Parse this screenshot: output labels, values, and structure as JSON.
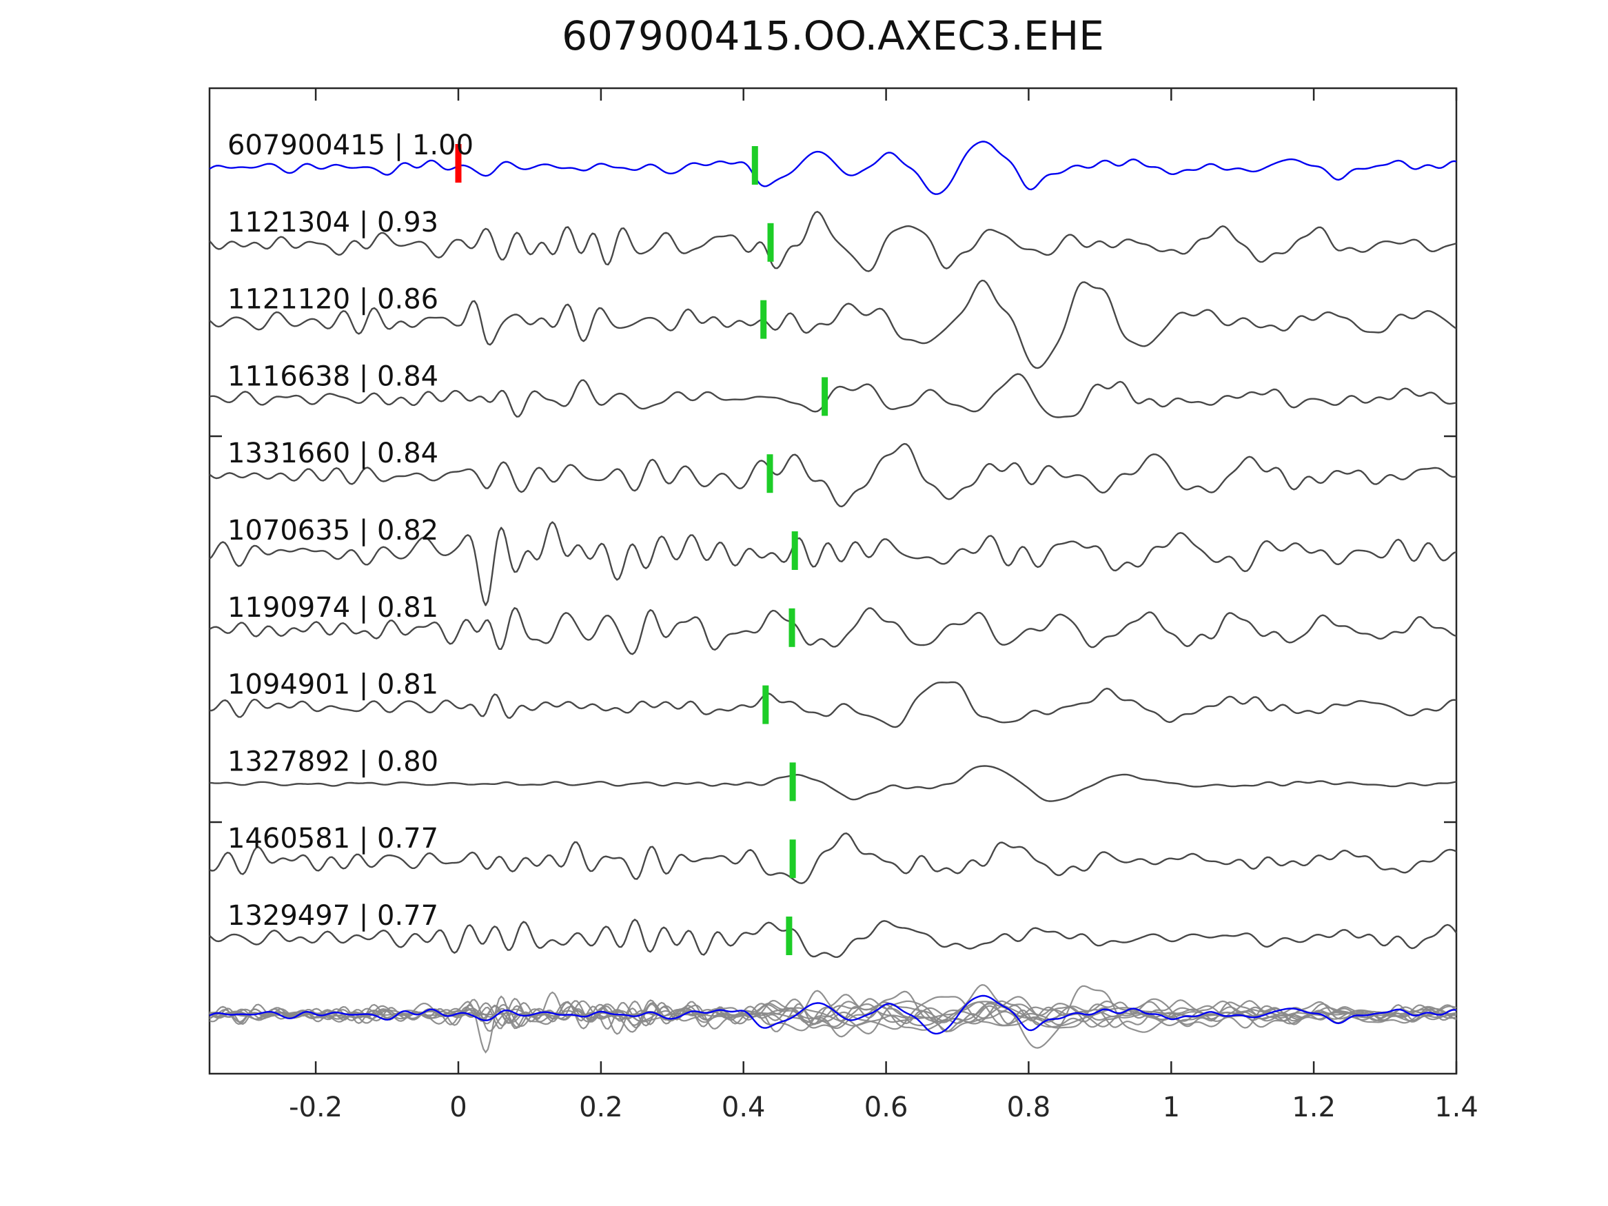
{
  "title": "607900415.OO.AXEC3.EHE",
  "chart_data": {
    "type": "line",
    "title": "607900415.OO.AXEC3.EHE",
    "xlabel": "",
    "ylabel": "",
    "x_range": [
      -0.349,
      1.4
    ],
    "x_ticks": [
      -0.2,
      0,
      0.2,
      0.4,
      0.6,
      0.8,
      1,
      1.2,
      1.4
    ],
    "x_tick_labels": [
      "-0.2",
      "0",
      "0.2",
      "0.4",
      "0.6",
      "0.8",
      "1",
      "1.2",
      "1.4"
    ],
    "grid": false,
    "legend": "none",
    "colors": {
      "template_trace": "#0000f0",
      "detection_trace": "#474747",
      "overlay_trace": "#8a8a8a",
      "pick_marker": "#1dcd27",
      "zero_marker": "#ff0000",
      "axis": "#262626",
      "tick_label": "#262626",
      "trace_label": "#111111"
    },
    "template_zero_marker": {
      "trace_id": "607900415",
      "time": 0.0
    },
    "traces": [
      {
        "id": "607900415",
        "correlation": "1.00",
        "label": "607900415 | 1.00",
        "pick_time": 0.416,
        "is_template": true,
        "synth": {
          "seed": 101,
          "hf_band": [
            14,
            30
          ],
          "lf_band": [
            4.5,
            9
          ],
          "hf_env": [
            [
              -0.35,
              4
            ],
            [
              0.3,
              4
            ],
            [
              0.45,
              3
            ],
            [
              1.4,
              3
            ]
          ],
          "lf_env": [
            [
              -0.35,
              2
            ],
            [
              0.3,
              3
            ],
            [
              0.38,
              6
            ],
            [
              0.48,
              18
            ],
            [
              0.8,
              17
            ],
            [
              1.0,
              10
            ],
            [
              1.2,
              7
            ],
            [
              1.4,
              6
            ]
          ]
        }
      },
      {
        "id": "1121304",
        "correlation": "0.93",
        "label": "1121304 | 0.93",
        "pick_time": 0.438,
        "is_template": false,
        "synth": {
          "seed": 7,
          "hf_band": [
            14,
            30
          ],
          "lf_band": [
            4.5,
            9
          ],
          "hf_env": [
            [
              -0.35,
              5
            ],
            [
              0.0,
              6
            ],
            [
              0.035,
              20
            ],
            [
              0.09,
              18
            ],
            [
              0.16,
              12
            ],
            [
              0.3,
              10
            ],
            [
              0.45,
              6
            ],
            [
              0.7,
              4
            ],
            [
              1.4,
              4
            ]
          ],
          "lf_env": [
            [
              -0.35,
              2
            ],
            [
              0.3,
              4
            ],
            [
              0.42,
              10
            ],
            [
              0.5,
              20
            ],
            [
              0.65,
              22
            ],
            [
              0.85,
              22
            ],
            [
              1.05,
              14
            ],
            [
              1.4,
              9
            ]
          ]
        }
      },
      {
        "id": "1121120",
        "correlation": "0.86",
        "label": "1121120 | 0.86",
        "pick_time": 0.428,
        "is_template": false,
        "synth": {
          "seed": 23,
          "hf_band": [
            14,
            30
          ],
          "lf_band": [
            4.5,
            9
          ],
          "hf_env": [
            [
              -0.35,
              5
            ],
            [
              0.0,
              6
            ],
            [
              0.035,
              19
            ],
            [
              0.09,
              16
            ],
            [
              0.18,
              11
            ],
            [
              0.3,
              9
            ],
            [
              0.45,
              6
            ],
            [
              0.7,
              4
            ],
            [
              1.4,
              4
            ]
          ],
          "lf_env": [
            [
              -0.35,
              2
            ],
            [
              0.3,
              4
            ],
            [
              0.42,
              9
            ],
            [
              0.5,
              18
            ],
            [
              0.65,
              20
            ],
            [
              0.85,
              20
            ],
            [
              1.05,
              13
            ],
            [
              1.4,
              9
            ]
          ]
        }
      },
      {
        "id": "1116638",
        "correlation": "0.84",
        "label": "1116638 | 0.84",
        "pick_time": 0.514,
        "is_template": false,
        "synth": {
          "seed": 41,
          "hf_band": [
            14,
            30
          ],
          "lf_band": [
            4.5,
            9
          ],
          "hf_env": [
            [
              -0.35,
              5
            ],
            [
              0.0,
              6
            ],
            [
              0.04,
              15
            ],
            [
              0.1,
              10
            ],
            [
              0.2,
              8
            ],
            [
              0.35,
              7
            ],
            [
              0.5,
              5
            ],
            [
              1.4,
              4
            ]
          ],
          "lf_env": [
            [
              -0.35,
              2
            ],
            [
              0.35,
              4
            ],
            [
              0.48,
              10
            ],
            [
              0.58,
              18
            ],
            [
              0.75,
              22
            ],
            [
              0.95,
              18
            ],
            [
              1.1,
              11
            ],
            [
              1.4,
              9
            ]
          ]
        }
      },
      {
        "id": "1331660",
        "correlation": "0.84",
        "label": "1331660 | 0.84",
        "pick_time": 0.437,
        "is_template": false,
        "synth": {
          "seed": 59,
          "hf_band": [
            14,
            30
          ],
          "lf_band": [
            4.5,
            9
          ],
          "hf_env": [
            [
              -0.35,
              5
            ],
            [
              0.0,
              6
            ],
            [
              0.04,
              17
            ],
            [
              0.1,
              12
            ],
            [
              0.2,
              10
            ],
            [
              0.32,
              8
            ],
            [
              0.45,
              6
            ],
            [
              1.4,
              4
            ]
          ],
          "lf_env": [
            [
              -0.35,
              2
            ],
            [
              0.3,
              4
            ],
            [
              0.42,
              10
            ],
            [
              0.52,
              19
            ],
            [
              0.7,
              21
            ],
            [
              0.88,
              19
            ],
            [
              1.05,
              13
            ],
            [
              1.4,
              9
            ]
          ]
        }
      },
      {
        "id": "1070635",
        "correlation": "0.82",
        "label": "1070635 | 0.82",
        "pick_time": 0.472,
        "is_template": false,
        "synth": {
          "seed": 73,
          "hf_band": [
            14,
            30
          ],
          "lf_band": [
            4.5,
            9
          ],
          "hf_env": [
            [
              -0.35,
              6
            ],
            [
              0.0,
              8
            ],
            [
              0.04,
              22
            ],
            [
              0.12,
              18
            ],
            [
              0.25,
              14
            ],
            [
              0.4,
              8
            ],
            [
              0.6,
              5
            ],
            [
              1.4,
              5
            ]
          ],
          "lf_env": [
            [
              -0.35,
              3
            ],
            [
              0.05,
              8
            ],
            [
              0.2,
              8
            ],
            [
              0.42,
              12
            ],
            [
              0.55,
              22
            ],
            [
              0.8,
              20
            ],
            [
              1.05,
              12
            ],
            [
              1.4,
              9
            ]
          ]
        }
      },
      {
        "id": "1190974",
        "correlation": "0.81",
        "label": "1190974 | 0.81",
        "pick_time": 0.468,
        "is_template": false,
        "synth": {
          "seed": 89,
          "hf_band": [
            14,
            30
          ],
          "lf_band": [
            4.5,
            9
          ],
          "hf_env": [
            [
              -0.35,
              6
            ],
            [
              0.0,
              8
            ],
            [
              0.04,
              21
            ],
            [
              0.14,
              17
            ],
            [
              0.28,
              13
            ],
            [
              0.42,
              8
            ],
            [
              0.6,
              5
            ],
            [
              1.4,
              5
            ]
          ],
          "lf_env": [
            [
              -0.35,
              2
            ],
            [
              0.3,
              5
            ],
            [
              0.45,
              11
            ],
            [
              0.55,
              20
            ],
            [
              0.75,
              20
            ],
            [
              0.95,
              16
            ],
            [
              1.1,
              11
            ],
            [
              1.4,
              8
            ]
          ]
        }
      },
      {
        "id": "1094901",
        "correlation": "0.81",
        "label": "1094901 | 0.81",
        "pick_time": 0.431,
        "is_template": false,
        "synth": {
          "seed": 113,
          "hf_band": [
            14,
            30
          ],
          "lf_band": [
            4,
            8
          ],
          "hf_env": [
            [
              -0.35,
              4
            ],
            [
              0.0,
              5
            ],
            [
              0.04,
              16
            ],
            [
              0.1,
              8
            ],
            [
              0.2,
              6
            ],
            [
              0.35,
              3
            ],
            [
              1.4,
              3
            ]
          ],
          "lf_env": [
            [
              -0.35,
              1.5
            ],
            [
              0.35,
              2
            ],
            [
              0.45,
              8
            ],
            [
              0.52,
              26
            ],
            [
              0.75,
              24
            ],
            [
              0.95,
              12
            ],
            [
              1.15,
              6
            ],
            [
              1.4,
              6
            ]
          ]
        }
      },
      {
        "id": "1327892",
        "correlation": "0.80",
        "label": "1327892 | 0.80",
        "pick_time": 0.469,
        "is_template": false,
        "synth": {
          "seed": 131,
          "hf_band": [
            14,
            30
          ],
          "lf_band": [
            3.5,
            7
          ],
          "hf_env": [
            [
              -0.35,
              1.2
            ],
            [
              0.03,
              1.5
            ],
            [
              0.06,
              3
            ],
            [
              0.12,
              1.5
            ],
            [
              1.4,
              1.2
            ]
          ],
          "lf_env": [
            [
              -0.35,
              0.5
            ],
            [
              0.4,
              1
            ],
            [
              0.47,
              12
            ],
            [
              0.55,
              34
            ],
            [
              0.7,
              28
            ],
            [
              0.85,
              16
            ],
            [
              1.0,
              6
            ],
            [
              1.15,
              2.5
            ],
            [
              1.4,
              2
            ]
          ]
        }
      },
      {
        "id": "1460581",
        "correlation": "0.77",
        "label": "1460581 | 0.77",
        "pick_time": 0.469,
        "is_template": false,
        "synth": {
          "seed": 151,
          "hf_band": [
            14,
            30
          ],
          "lf_band": [
            4.5,
            9
          ],
          "hf_env": [
            [
              -0.35,
              5
            ],
            [
              0.04,
              11
            ],
            [
              0.12,
              8
            ],
            [
              0.3,
              7
            ],
            [
              0.5,
              5
            ],
            [
              1.4,
              4
            ]
          ],
          "lf_env": [
            [
              -0.35,
              2
            ],
            [
              0.4,
              4
            ],
            [
              0.5,
              22
            ],
            [
              0.65,
              18
            ],
            [
              0.85,
              16
            ],
            [
              1.1,
              10
            ],
            [
              1.4,
              8
            ]
          ]
        }
      },
      {
        "id": "1329497",
        "correlation": "0.77",
        "label": "1329497 | 0.77",
        "pick_time": 0.464,
        "is_template": false,
        "synth": {
          "seed": 173,
          "hf_band": [
            14,
            30
          ],
          "lf_band": [
            4.5,
            9
          ],
          "hf_env": [
            [
              -0.35,
              5
            ],
            [
              0.04,
              10
            ],
            [
              0.15,
              8
            ],
            [
              0.35,
              7
            ],
            [
              0.55,
              5
            ],
            [
              1.4,
              4
            ]
          ],
          "lf_env": [
            [
              -0.35,
              2
            ],
            [
              0.4,
              5
            ],
            [
              0.5,
              16
            ],
            [
              0.7,
              18
            ],
            [
              0.9,
              14
            ],
            [
              1.1,
              9
            ],
            [
              1.4,
              8
            ]
          ]
        }
      }
    ],
    "overlay_row": {
      "description": "all detection traces overlaid in gray with template in blue",
      "member_ids": [
        "1121304",
        "1121120",
        "1116638",
        "1331660",
        "1070635",
        "1190974",
        "1094901",
        "1327892",
        "1460581",
        "1329497"
      ],
      "template_id": "607900415",
      "scale": 0.72
    }
  }
}
